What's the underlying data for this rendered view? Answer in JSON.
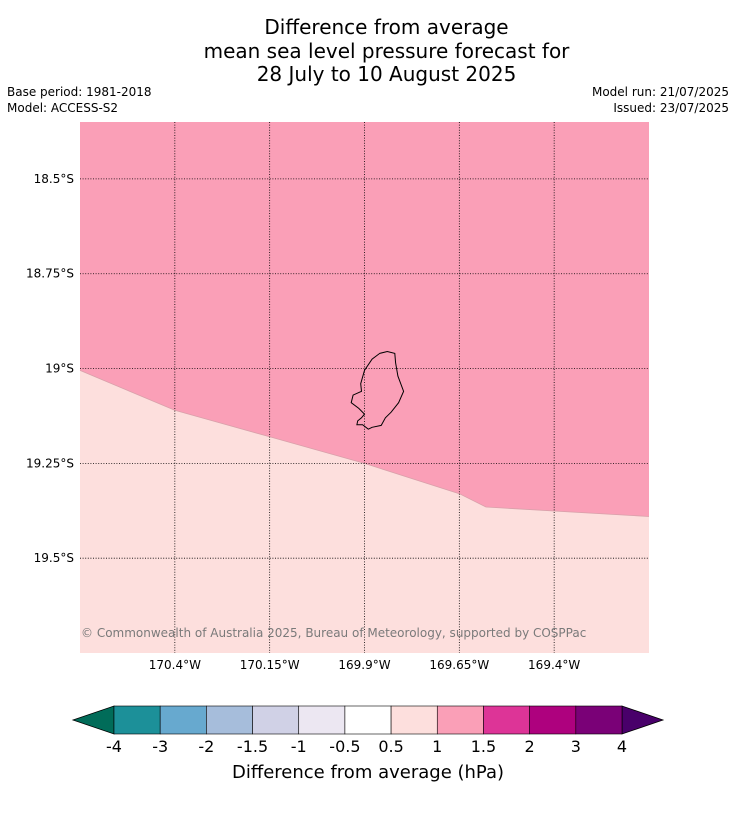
{
  "header": {
    "title_lines": [
      "Difference from average",
      "mean sea level pressure forecast for",
      "28 July to 10 August 2025"
    ],
    "base_period": "Base period: 1981-2018",
    "model": "Model: ACCESS-S2",
    "model_run": "Model run: 21/07/2025",
    "issued": "Issued: 23/07/2025"
  },
  "map": {
    "copyright": "© Commonwealth of Australia 2025, Bureau of Meteorology, supported by COSPPac"
  },
  "chart_data": {
    "type": "heatmap",
    "title": "Difference from average mean sea level pressure forecast for 28 July to 10 August 2025",
    "x_axis": {
      "range": [
        -170.65,
        -169.15
      ],
      "tick_values": [
        -170.4,
        -170.15,
        -169.9,
        -169.65,
        -169.4
      ],
      "tick_labels": [
        "170.4°W",
        "170.15°W",
        "169.9°W",
        "169.65°W",
        "169.4°W"
      ]
    },
    "y_axis": {
      "range": [
        -19.75,
        -18.35
      ],
      "tick_values": [
        -18.5,
        -18.75,
        -19.0,
        -19.25,
        -19.5
      ],
      "tick_labels": [
        "18.5°S",
        "18.75°S",
        "19°S",
        "19.25°S",
        "19.5°S"
      ]
    },
    "grid": true,
    "regions": [
      {
        "range": "1 to 1.5",
        "color": "#fa9fb7",
        "position": "north"
      },
      {
        "range": "0.5 to 1",
        "color": "#fddfdd",
        "position": "south"
      }
    ],
    "boundary_1hPa": [
      [
        -170.65,
        -19.005
      ],
      [
        -170.4,
        -19.11
      ],
      [
        -170.15,
        -19.18
      ],
      [
        -169.9,
        -19.25
      ],
      [
        -169.65,
        -19.33
      ],
      [
        -169.58,
        -19.365
      ],
      [
        -169.15,
        -19.39
      ]
    ],
    "island_outline": [
      [
        -169.86,
        -18.96
      ],
      [
        -169.84,
        -18.955
      ],
      [
        -169.82,
        -18.96
      ],
      [
        -169.818,
        -18.985
      ],
      [
        -169.812,
        -19.02
      ],
      [
        -169.797,
        -19.06
      ],
      [
        -169.81,
        -19.09
      ],
      [
        -169.83,
        -19.115
      ],
      [
        -169.845,
        -19.13
      ],
      [
        -169.856,
        -19.15
      ],
      [
        -169.88,
        -19.155
      ],
      [
        -169.89,
        -19.16
      ],
      [
        -169.905,
        -19.148
      ],
      [
        -169.92,
        -19.148
      ],
      [
        -169.918,
        -19.138
      ],
      [
        -169.908,
        -19.13
      ],
      [
        -169.9,
        -19.12
      ],
      [
        -169.915,
        -19.105
      ],
      [
        -169.935,
        -19.09
      ],
      [
        -169.93,
        -19.07
      ],
      [
        -169.908,
        -19.06
      ],
      [
        -169.91,
        -19.04
      ],
      [
        -169.9,
        -19.005
      ],
      [
        -169.88,
        -18.975
      ],
      [
        -169.86,
        -18.96
      ]
    ],
    "colorbar": {
      "label": "Difference from average (hPa)",
      "boundaries": [
        "-4",
        "-3",
        "-2",
        "-1.5",
        "-1",
        "-0.5",
        "0.5",
        "1",
        "1.5",
        "2",
        "3",
        "4"
      ],
      "colors": [
        "#1c9099",
        "#67a9cf",
        "#a6bddb",
        "#d0d1e6",
        "#ece7f2",
        "#ffffff",
        "#fddfdd",
        "#fa9fb7",
        "#dd3497",
        "#ae017e",
        "#7a0177"
      ],
      "extend_low_color": "#016c59",
      "extend_high_color": "#49006a"
    }
  }
}
